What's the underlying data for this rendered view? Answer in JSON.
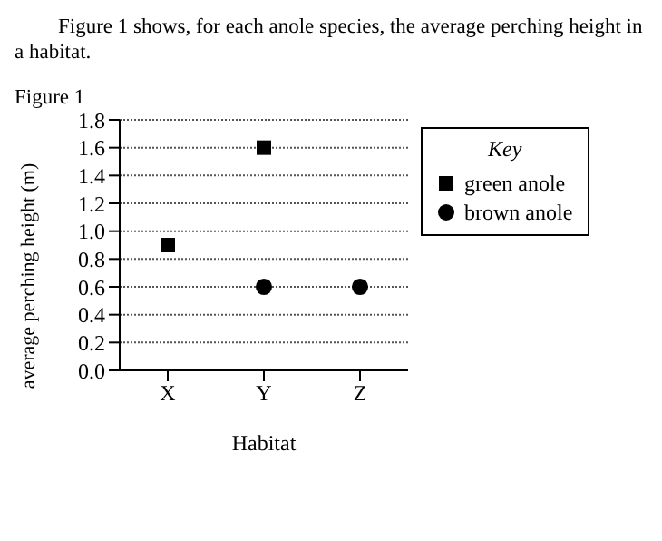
{
  "chart_data": {
    "type": "scatter",
    "title": "Figure 1",
    "subtitle": "Figure 1 shows, for each anole species, the average perching height in a habitat.",
    "xlabel": "Habitat",
    "ylabel": "average perching height (m)",
    "legend_title": "Key",
    "categories": [
      "X",
      "Y",
      "Z"
    ],
    "series": [
      {
        "name": "green anole",
        "color": "#000000",
        "marker": "square",
        "values": [
          0.9,
          1.6,
          null
        ]
      },
      {
        "name": "brown anole",
        "color": "#000000",
        "marker": "circle",
        "values": [
          null,
          0.6,
          0.6
        ]
      }
    ],
    "ylim": [
      0,
      1.8
    ],
    "yticks": [
      {
        "value": 0,
        "label": "0.0"
      },
      0.2,
      0.4,
      0.6,
      0.8,
      {
        "value": 1,
        "label": "1.0"
      },
      1.2,
      1.4,
      1.6,
      1.8
    ],
    "grid": "y",
    "legend": "right"
  }
}
